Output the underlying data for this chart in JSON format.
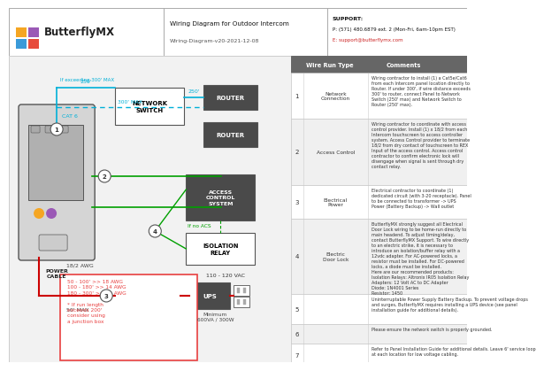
{
  "title": "Wiring Diagram for Outdoor Intercom",
  "subtitle": "Wiring-Diagram-v20-2021-12-08",
  "company": "ButterflyMX",
  "support_title": "SUPPORT:",
  "support_phone": "P: (571) 480.6879 ext. 2 (Mon-Fri, 6am-10pm EST)",
  "support_email": "E: support@butterflymx.com",
  "bg_color": "#ffffff",
  "wire_types": [
    {
      "num": "1",
      "type": "Network\nConnection",
      "comment": "Wiring contractor to install (1) a Cat5e/Cat6\nfrom each Intercom panel location directly to\nRouter. If under 300', if wire distance exceeds\n300' to router, connect Panel to Network\nSwitch (250' max) and Network Switch to\nRouter (250' max)."
    },
    {
      "num": "2",
      "type": "Access Control",
      "comment": "Wiring contractor to coordinate with access\ncontrol provider. Install (1) x 18/2 from each\nIntercom touchscreen to access controller\nsystem. Access Control provider to terminate\n18/2 from dry contact of touchscreen to REX\nInput of the access control. Access control\ncontractor to confirm electronic lock will\ndisengage when signal is sent through dry\ncontact relay."
    },
    {
      "num": "3",
      "type": "Electrical\nPower",
      "comment": "Electrical contractor to coordinate (1)\ndedicated circuit (with 3-20 receptacle). Panel\nto be connected to transformer -> UPS\nPower (Battery Backup) -> Wall outlet"
    },
    {
      "num": "4",
      "type": "Electric\nDoor Lock",
      "comment": "ButterflyMX strongly suggest all Electrical\nDoor Lock wiring to be home-run directly to\nmain headend. To adjust timing/delay,\ncontact ButterflyMX Support. To wire directly\nto an electric strike, it is necessary to\nintroduce an isolation/buffer relay with a\n12vdc adapter. For AC-powered locks, a\nresistor must be installed. For DC-powered\nlocks, a diode must be installed.\nHere are our recommended products:\nIsolation Relays: Altronix IR05 Isolation Relay\nAdapters: 12 Volt AC to DC Adapter\nDiode: 1N4001 Series\nResistor: 1450"
    },
    {
      "num": "5",
      "type": "",
      "comment": "Uninterruptable Power Supply Battery Backup. To prevent voltage drops\nand surges, ButterflyMX requires installing a UPS device (see panel\ninstallation guide for additional details)."
    },
    {
      "num": "6",
      "type": "",
      "comment": "Please ensure the network switch is properly grounded."
    },
    {
      "num": "7",
      "type": "",
      "comment": "Refer to Panel Installation Guide for additional details. Leave 6' service loop\nat each location for low voltage cabling."
    }
  ],
  "cyan": "#00b0d8",
  "green": "#00a000",
  "red": "#cc0000",
  "pink": "#e84040",
  "dark_box": "#4a4a4a",
  "awg_text": "50 - 100' >> 18 AWG\n100 - 180' >> 14 AWG\n180 - 300' >> 12 AWG\n\n* If run length\nexceeds 200'\nconsider using\na junction box"
}
